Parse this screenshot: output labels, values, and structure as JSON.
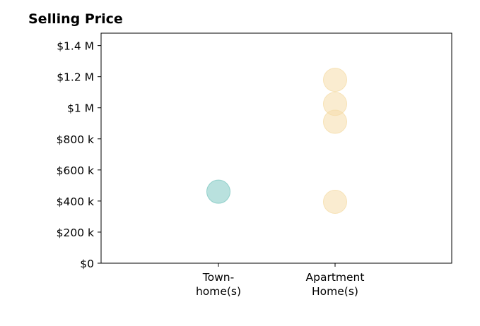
{
  "chart_data": {
    "type": "scatter",
    "title": "Selling Price",
    "categories": [
      "Town-\nhome(s)",
      "Apartment\nHome(s)"
    ],
    "ylim": [
      0,
      1480000
    ],
    "yticks": [
      0,
      200000,
      400000,
      600000,
      800000,
      1000000,
      1200000,
      1400000
    ],
    "ytick_labels": [
      "$0",
      "$200 k",
      "$400 k",
      "$600 k",
      "$800 k",
      "$1 M",
      "$1.2 M",
      "$1.4 M"
    ],
    "grid": false,
    "series": [
      {
        "category_index": 0,
        "color": "#7fc8c2",
        "values": [
          460000
        ]
      },
      {
        "category_index": 1,
        "color": "#f5ddaa",
        "values": [
          1180000,
          1025000,
          910000,
          395000
        ]
      }
    ]
  }
}
